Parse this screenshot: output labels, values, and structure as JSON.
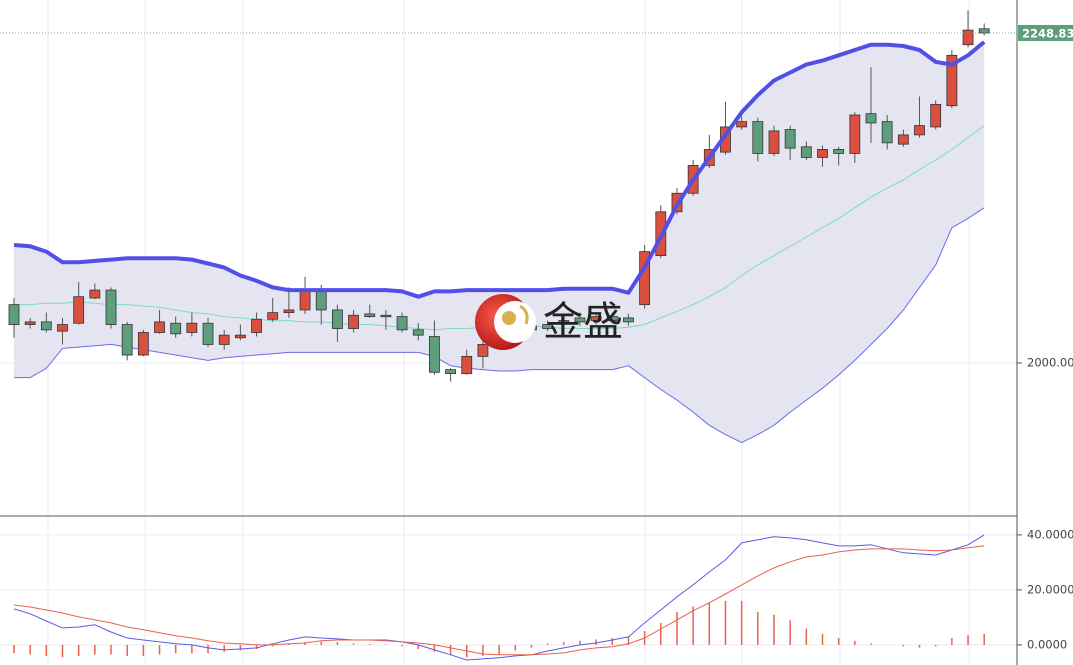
{
  "chart_data": [
    {
      "type": "candlestick",
      "open": [
        2044,
        2029,
        2031,
        2024,
        2030,
        2049,
        2055,
        2029,
        2006,
        2023,
        2030,
        2023,
        2030,
        2014,
        2019,
        2023,
        2033,
        2038,
        2040,
        2055,
        2040,
        2026,
        2037,
        2036,
        2035,
        2025,
        2020,
        1995,
        1992,
        2005,
        2014,
        2023,
        2025,
        2029,
        2032,
        2034,
        2032,
        2035,
        2034,
        2044,
        2081,
        2114,
        2128,
        2149,
        2159,
        2178,
        2182,
        2158,
        2176,
        2163,
        2155,
        2161,
        2158,
        2188,
        2182,
        2165,
        2172,
        2178,
        2194,
        2240,
        2252
      ],
      "high": [
        2049,
        2034,
        2038,
        2034,
        2061,
        2060,
        2057,
        2031,
        2025,
        2040,
        2035,
        2038,
        2034,
        2025,
        2029,
        2038,
        2049,
        2057,
        2065,
        2059,
        2044,
        2040,
        2044,
        2040,
        2038,
        2030,
        2032,
        1996,
        2010,
        2019,
        2029,
        2029,
        2031,
        2032,
        2035,
        2038,
        2038,
        2038,
        2037,
        2089,
        2119,
        2132,
        2153,
        2172,
        2197,
        2186,
        2185,
        2179,
        2179,
        2167,
        2164,
        2163,
        2189,
        2223,
        2187,
        2176,
        2201,
        2198,
        2236,
        2266,
        2256
      ],
      "low": [
        2019,
        2026,
        2023,
        2014,
        2029,
        2048,
        2026,
        2002,
        2005,
        2022,
        2019,
        2020,
        2012,
        2010,
        2017,
        2020,
        2031,
        2034,
        2037,
        2029,
        2016,
        2023,
        2034,
        2025,
        2023,
        2017,
        1991,
        1986,
        1991,
        1996,
        2011,
        2020,
        2023,
        2024,
        2029,
        2028,
        2029,
        2030,
        2028,
        2041,
        2079,
        2112,
        2126,
        2147,
        2157,
        2176,
        2152,
        2156,
        2153,
        2153,
        2148,
        2149,
        2151,
        2166,
        2161,
        2163,
        2170,
        2176,
        2192,
        2238,
        2247
      ],
      "close": [
        2029,
        2031,
        2025,
        2029,
        2050,
        2055,
        2029,
        2006,
        2023,
        2031,
        2022,
        2030,
        2014,
        2021,
        2021,
        2033,
        2038,
        2040,
        2055,
        2040,
        2026,
        2036,
        2035,
        2035,
        2025,
        2021,
        1993,
        1992,
        2005,
        2014,
        2026,
        2026,
        2028,
        2026,
        2031,
        2031,
        2035,
        2032,
        2031,
        2084,
        2114,
        2128,
        2149,
        2161,
        2178,
        2182,
        2158,
        2175,
        2162,
        2155,
        2161,
        2158,
        2187,
        2181,
        2166,
        2172,
        2179,
        2195,
        2232,
        2251,
        2248.83
      ],
      "up_color": "#d9503f",
      "down_color": "#5e9e7c",
      "series": [
        {
          "color": "#5050e8",
          "values": [
            2089,
            2088,
            2084,
            2076,
            2076,
            2077,
            2078,
            2079,
            2079,
            2079,
            2079,
            2078,
            2075,
            2072,
            2066,
            2062,
            2057,
            2055,
            2055,
            2055,
            2055,
            2055,
            2055,
            2055,
            2054,
            2050,
            2054,
            2054,
            2055,
            2055,
            2055,
            2055,
            2055,
            2055,
            2056,
            2056,
            2056,
            2056,
            2053,
            2072,
            2095,
            2119,
            2138,
            2155,
            2172,
            2189,
            2202,
            2213,
            2219,
            2225,
            2228,
            2232,
            2236,
            2240,
            2240,
            2239,
            2236,
            2227,
            2225,
            2232,
            2242
          ]
        },
        {
          "color": "#7fd9c6",
          "values": [
            2044,
            2044,
            2045,
            2045,
            2046,
            2045,
            2044,
            2044,
            2043,
            2042,
            2040,
            2038,
            2037,
            2035,
            2034,
            2033,
            2032,
            2032,
            2031,
            2031,
            2030,
            2029,
            2029,
            2028,
            2027,
            2026,
            2025,
            2026,
            2026,
            2027,
            2027,
            2028,
            2028,
            2027,
            2026,
            2026,
            2026,
            2026,
            2027,
            2029,
            2034,
            2039,
            2044,
            2050,
            2057,
            2066,
            2074,
            2081,
            2088,
            2095,
            2102,
            2109,
            2117,
            2125,
            2132,
            2138,
            2146,
            2153,
            2161,
            2170,
            2179
          ]
        },
        {
          "color": "#6b6bf0",
          "values": [
            1989,
            1989,
            1996,
            2011,
            2012,
            2013,
            2014,
            2012,
            2010,
            2008,
            2006,
            2004,
            2002,
            2004,
            2005,
            2006,
            2007,
            2008,
            2008,
            2008,
            2008,
            2008,
            2008,
            2008,
            2008,
            2008,
            2005,
            1998,
            1996,
            1995,
            1994,
            1994,
            1995,
            1995,
            1995,
            1995,
            1995,
            1995,
            1998,
            1989,
            1980,
            1972,
            1963,
            1953,
            1946,
            1940,
            1946,
            1953,
            1963,
            1972,
            1981,
            1991,
            2002,
            2014,
            2026,
            2040,
            2057,
            2074,
            2102,
            2109,
            2117
          ]
        }
      ],
      "band_fill": "#e5e5f2",
      "ylim": [
        1885.4,
        2273.7
      ],
      "yticks": [
        {
          "value": 2000,
          "label": "2000.00"
        }
      ],
      "last_price": {
        "value": 2248.83,
        "label": "2248.83",
        "color": "#5e9e7c"
      },
      "watermark": "金盛",
      "grid": true
    },
    {
      "type": "line",
      "series": [
        {
          "color": "#5b5be8",
          "values": [
            13.1,
            11.3,
            8.7,
            6.2,
            6.5,
            7.3,
            4.7,
            2.5,
            1.8,
            1.1,
            0.4,
            0,
            -1.1,
            -1.8,
            -1.5,
            -1.1,
            0.4,
            1.8,
            2.9,
            2.5,
            2.2,
            1.8,
            1.8,
            1.8,
            1.1,
            0,
            -1.8,
            -3.6,
            -5.5,
            -5.1,
            -4.7,
            -4,
            -3.6,
            -2.2,
            -1.1,
            0,
            0.7,
            1.8,
            2.9,
            8,
            12.7,
            17.5,
            21.8,
            26.5,
            30.9,
            37.1,
            38.2,
            39.3,
            38.9,
            38.2,
            37.1,
            36,
            36,
            36.4,
            34.9,
            33.5,
            33.1,
            32.7,
            34.5,
            36.4,
            40
          ]
        },
        {
          "color": "#e8614f",
          "values": [
            14.5,
            13.8,
            12.7,
            11.6,
            10.2,
            9.1,
            8,
            6.5,
            5.5,
            4.4,
            3.3,
            2.5,
            1.5,
            0.7,
            0.4,
            0,
            0,
            0.4,
            0.7,
            1.5,
            1.8,
            1.8,
            1.8,
            1.5,
            1.1,
            0.7,
            0,
            -1.1,
            -2.2,
            -3.3,
            -3.6,
            -3.6,
            -3.6,
            -3.3,
            -2.9,
            -1.8,
            -1.1,
            -0.7,
            0.4,
            2.5,
            5.8,
            9.1,
            12.4,
            15.3,
            18.5,
            21.8,
            25.1,
            28,
            30.2,
            32,
            32.7,
            33.8,
            34.5,
            34.9,
            34.9,
            34.9,
            34.5,
            34.2,
            34.5,
            35.3,
            36
          ]
        }
      ],
      "histogram": {
        "color": "#e8614f",
        "values": [
          -3,
          -3.5,
          -4,
          -4.5,
          -4,
          -3.5,
          -3.5,
          -4,
          -4,
          -3.5,
          -3,
          -3,
          -3,
          -2.5,
          -2,
          -1.5,
          -0.5,
          0.5,
          1,
          1.2,
          1,
          0.5,
          0.3,
          0.2,
          -0.5,
          -1.5,
          -2.5,
          -3.5,
          -4.5,
          -4,
          -3.5,
          -2,
          -1,
          0.5,
          1,
          1.5,
          2,
          2.5,
          3,
          5,
          8,
          12,
          14,
          15.5,
          16,
          16,
          12,
          11,
          9,
          6,
          4,
          2.5,
          1.5,
          0.5,
          0,
          -0.5,
          -1,
          -0.5,
          2.5,
          3.5,
          4
        ]
      },
      "ylim": [
        -7.3,
        46.5
      ],
      "yticks": [
        {
          "value": 40,
          "label": "40.0000"
        },
        {
          "value": 20,
          "label": "20.0000"
        },
        {
          "value": 0,
          "label": "0.0000"
        }
      ],
      "grid": true
    }
  ]
}
